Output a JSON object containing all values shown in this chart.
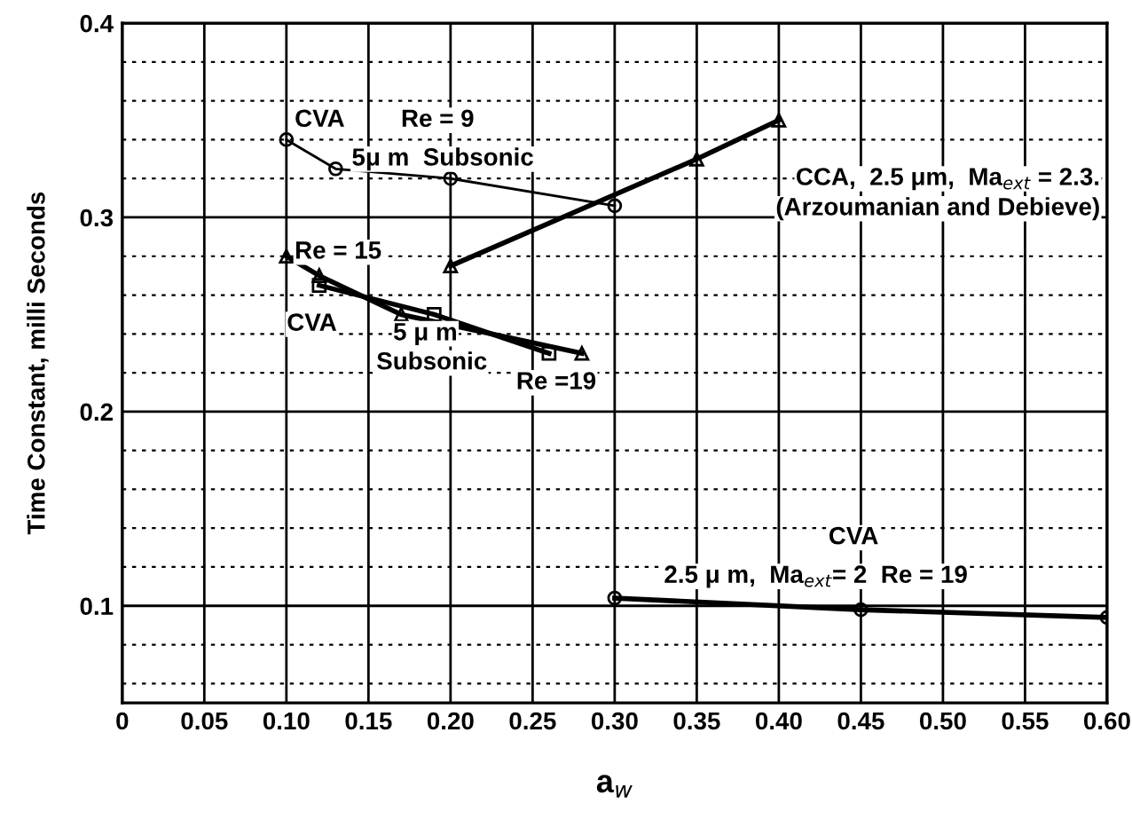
{
  "chart_data": {
    "type": "line",
    "xlabel": "a$_{w}$",
    "ylabel": "Time Constant, milli Seconds",
    "xlim": [
      0,
      0.6
    ],
    "ylim": [
      0.05,
      0.4
    ],
    "xticks": [
      0,
      {
        "value": 0.05,
        "label": "0.05"
      },
      {
        "value": 0.1,
        "label": "0.10"
      },
      {
        "value": 0.15,
        "label": "0.15"
      },
      {
        "value": 0.2,
        "label": "0.20"
      },
      {
        "value": 0.25,
        "label": "0.25"
      },
      {
        "value": 0.3,
        "label": "0.30"
      },
      {
        "value": 0.35,
        "label": "0.35"
      },
      {
        "value": 0.4,
        "label": "0.40"
      },
      {
        "value": 0.45,
        "label": "0.45"
      },
      {
        "value": 0.5,
        "label": "0.50"
      },
      {
        "value": 0.55,
        "label": "0.55"
      },
      {
        "value": 0.6,
        "label": "0.60"
      }
    ],
    "yticks": [
      {
        "value": 0.06,
        "label": null
      },
      {
        "value": 0.08,
        "label": null
      },
      0.1,
      {
        "value": 0.12,
        "label": null
      },
      {
        "value": 0.14,
        "label": null
      },
      {
        "value": 0.16,
        "label": null
      },
      {
        "value": 0.18,
        "label": null
      },
      0.2,
      {
        "value": 0.22,
        "label": null
      },
      {
        "value": 0.24,
        "label": null
      },
      {
        "value": 0.26,
        "label": null
      },
      {
        "value": 0.28,
        "label": null
      },
      0.3,
      {
        "value": 0.32,
        "label": null
      },
      {
        "value": 0.34,
        "label": null
      },
      {
        "value": 0.36,
        "label": null
      },
      {
        "value": 0.38,
        "label": null
      },
      0.4
    ],
    "grid": true,
    "line_style": "solid",
    "series": [
      {
        "color": "#000000",
        "marker": "circle",
        "x": [
          0.1,
          0.13,
          0.2,
          0.3
        ],
        "values": [
          0.34,
          0.325,
          0.32,
          0.306
        ]
      },
      {
        "color": "#000000",
        "marker": "triangle",
        "x": [
          0.2,
          0.35,
          0.4
        ],
        "values": [
          0.275,
          0.33,
          0.35
        ]
      },
      {
        "color": "#000000",
        "marker": "triangle",
        "x": [
          0.1,
          0.12,
          0.17,
          0.28
        ],
        "values": [
          0.28,
          0.27,
          0.25,
          0.23
        ]
      },
      {
        "color": "#000000",
        "marker": "square",
        "x": [
          0.12,
          0.19,
          0.26
        ],
        "values": [
          0.265,
          0.25,
          0.23
        ]
      },
      {
        "color": "#000000",
        "marker": "circle",
        "x": [
          0.3,
          0.45,
          0.6
        ],
        "values": [
          0.104,
          0.098,
          0.094
        ]
      }
    ],
    "annotations": [
      "CVA",
      "Re = 9",
      "5μ m  Subsonic",
      "CCA,  2.5 μm,  Ma$_{ext}$ = 2.3.",
      "(Arzoumanian and Debieve)",
      "Re = 15",
      "CVA",
      "5 μ m",
      "Subsonic",
      "Re =19",
      "CVA",
      "2.5 μ m,  Ma$_{ext}$= 2  Re = 19"
    ]
  }
}
